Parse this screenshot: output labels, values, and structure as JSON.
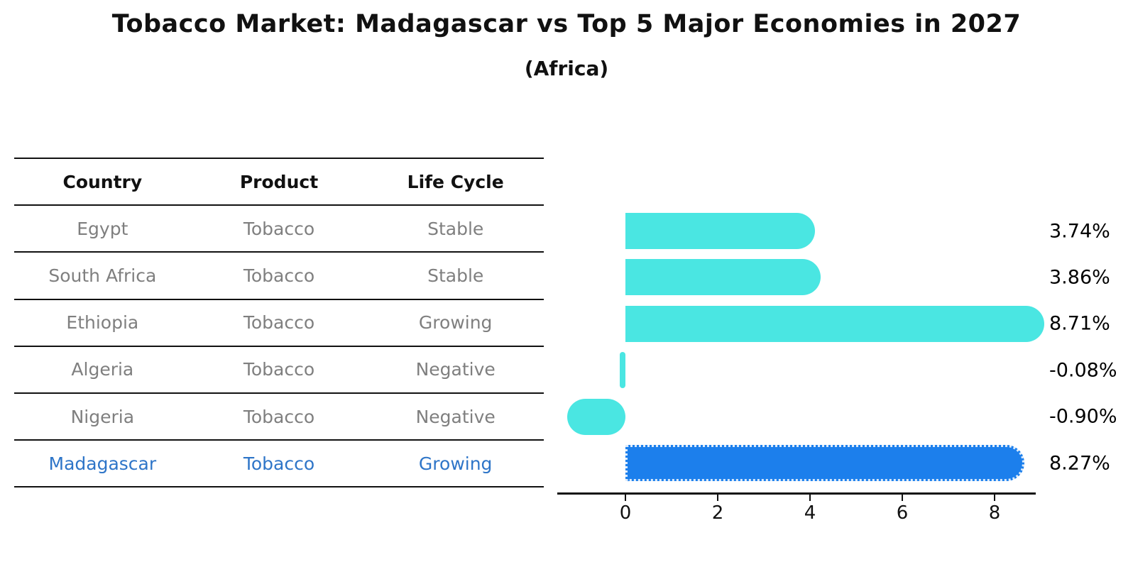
{
  "title": "Tobacco Market: Madagascar vs Top 5 Major Economies in 2027",
  "subtitle": "(Africa)",
  "table": {
    "headers": [
      "Country",
      "Product",
      "Life Cycle"
    ],
    "rows": [
      {
        "country": "Egypt",
        "product": "Tobacco",
        "life_cycle": "Stable",
        "highlight": false
      },
      {
        "country": "South Africa",
        "product": "Tobacco",
        "life_cycle": "Stable",
        "highlight": false
      },
      {
        "country": "Ethiopia",
        "product": "Tobacco",
        "life_cycle": "Growing",
        "highlight": false
      },
      {
        "country": "Algeria",
        "product": "Tobacco",
        "life_cycle": "Negative",
        "highlight": false
      },
      {
        "country": "Nigeria",
        "product": "Tobacco",
        "life_cycle": "Negative",
        "highlight": false
      },
      {
        "country": "Madagascar",
        "product": "Tobacco",
        "life_cycle": "Growing",
        "highlight": true
      }
    ]
  },
  "chart_data": {
    "type": "bar",
    "orientation": "horizontal",
    "title": "Tobacco Market: Madagascar vs Top 5 Major Economies in 2027",
    "subtitle": "(Africa)",
    "categories": [
      "Egypt",
      "South Africa",
      "Ethiopia",
      "Algeria",
      "Nigeria",
      "Madagascar"
    ],
    "values": [
      3.74,
      3.86,
      8.71,
      -0.08,
      -0.9,
      8.27
    ],
    "value_labels": [
      "3.74%",
      "3.86%",
      "8.71%",
      "-0.08%",
      "-0.90%",
      "8.27%"
    ],
    "highlight_index": 5,
    "x_ticks": [
      0,
      2,
      4,
      6,
      8
    ],
    "xlim": [
      -1.5,
      8.9
    ],
    "grid": false,
    "legend": false
  },
  "colors": {
    "bar_default": "#4AE6E2",
    "bar_highlight": "#1C7FEC",
    "highlight_text": "#2E75C8",
    "row_text": "#7F7F7F",
    "header_text": "#111111",
    "value_text": "#000000",
    "axis": "#111111"
  }
}
